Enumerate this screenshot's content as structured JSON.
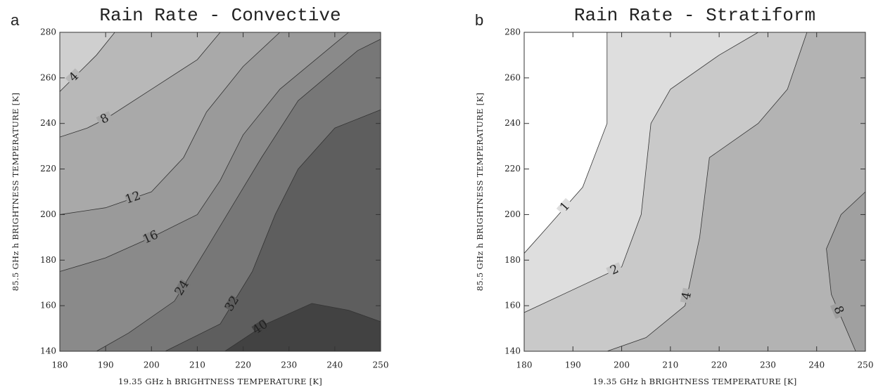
{
  "chart_data": [
    {
      "type": "contour",
      "panel": "a",
      "title": "Rain Rate - Convective",
      "xlabel": "19.35 GHz h BRIGHTNESS TEMPERATURE [K]",
      "ylabel": "85.5 GHz h BRIGHTNESS TEMPERATURE [K]",
      "xlim": [
        180,
        250
      ],
      "ylim": [
        140,
        280
      ],
      "xticks": [
        180,
        190,
        200,
        210,
        220,
        230,
        240,
        250
      ],
      "yticks": [
        140,
        160,
        180,
        200,
        220,
        240,
        260,
        280
      ],
      "background": "#cfcfcf",
      "contours": [
        {
          "level": 4,
          "color": "#b8b8b8",
          "x": [
            180,
            184,
            188,
            192
          ],
          "y": [
            254,
            262,
            270,
            280
          ]
        },
        {
          "level": 8,
          "color": "#a9a9a9",
          "x": [
            180,
            186,
            190,
            200,
            210,
            215
          ],
          "y": [
            234,
            238,
            242,
            255,
            268,
            280
          ]
        },
        {
          "level": 12,
          "color": "#9a9a9a",
          "x": [
            180,
            190,
            200,
            207,
            212,
            220,
            228
          ],
          "y": [
            200,
            203,
            210,
            225,
            245,
            265,
            280
          ]
        },
        {
          "level": 16,
          "color": "#8a8a8a",
          "x": [
            180,
            190,
            200,
            210,
            215,
            220,
            228,
            240,
            243
          ],
          "y": [
            175,
            181,
            190,
            200,
            215,
            235,
            255,
            275,
            280
          ]
        },
        {
          "level": 24,
          "color": "#777777",
          "x": [
            188,
            195,
            205,
            212,
            218,
            224,
            232,
            245,
            250
          ],
          "y": [
            140,
            148,
            162,
            185,
            205,
            225,
            250,
            272,
            277
          ]
        },
        {
          "level": 32,
          "color": "#5e5e5e",
          "x": [
            203,
            215,
            222,
            227,
            232,
            240,
            250
          ],
          "y": [
            140,
            152,
            175,
            200,
            220,
            238,
            246
          ]
        },
        {
          "level": 40,
          "color": "#424242",
          "x": [
            216,
            225,
            235,
            243,
            250
          ],
          "y": [
            140,
            152,
            161,
            158,
            153
          ]
        }
      ]
    },
    {
      "type": "contour",
      "panel": "b",
      "title": "Rain Rate - Stratiform",
      "xlabel": "19.35 GHz h BRIGHTNESS TEMPERATURE [K]",
      "ylabel": "85.5 GHz h BRIGHTNESS TEMPERATURE [K]",
      "xlim": [
        180,
        250
      ],
      "ylim": [
        140,
        280
      ],
      "xticks": [
        180,
        190,
        200,
        210,
        220,
        230,
        240,
        250
      ],
      "yticks": [
        140,
        160,
        180,
        200,
        220,
        240,
        260,
        280
      ],
      "background": "#ffffff",
      "contours": [
        {
          "level": 1,
          "color": "#dedede",
          "x": [
            180,
            185,
            192,
            197,
            197
          ],
          "y": [
            183,
            195,
            212,
            240,
            280
          ]
        },
        {
          "level": 2,
          "color": "#c9c9c9",
          "x": [
            180,
            190,
            200,
            204,
            206,
            210,
            220,
            228
          ],
          "y": [
            157,
            167,
            177,
            200,
            240,
            255,
            270,
            280
          ]
        },
        {
          "level": 4,
          "color": "#b3b3b3",
          "x": [
            197,
            205,
            213,
            216,
            218,
            228,
            234,
            238
          ],
          "y": [
            140,
            146,
            160,
            190,
            225,
            240,
            255,
            280
          ]
        },
        {
          "level": 8,
          "color": "#a0a0a0",
          "x": [
            248,
            246,
            243,
            242,
            245,
            250
          ],
          "y": [
            140,
            150,
            165,
            185,
            200,
            210
          ]
        }
      ]
    }
  ]
}
